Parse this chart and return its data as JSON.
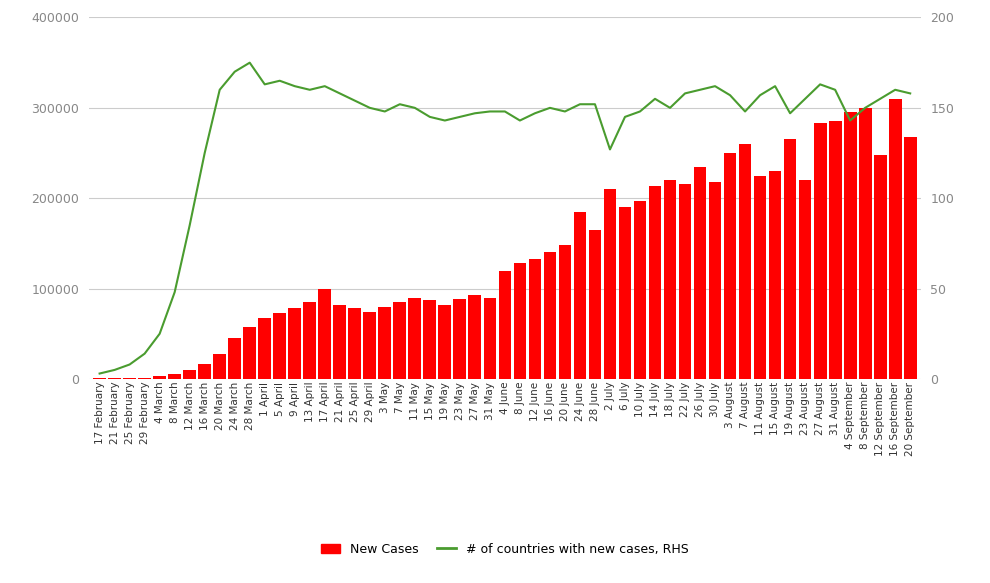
{
  "background_color": "#ffffff",
  "bar_color": "#ff0000",
  "line_color": "#4a9c2f",
  "left_ylim": [
    0,
    400000
  ],
  "right_ylim": [
    0,
    200
  ],
  "left_yticks": [
    0,
    100000,
    200000,
    300000,
    400000
  ],
  "right_yticks": [
    0,
    50,
    100,
    150,
    200
  ],
  "legend_labels": [
    "New Cases",
    "# of countries with new cases, RHS"
  ],
  "labels": [
    "17 February",
    "21 February",
    "25 February",
    "29 February",
    "4 March",
    "8 March",
    "12 March",
    "16 March",
    "20 March",
    "24 March",
    "28 March",
    "1 April",
    "5 April",
    "9 April",
    "13 April",
    "17 April",
    "21 April",
    "25 April",
    "29 April",
    "3 May",
    "7 May",
    "11 May",
    "15 May",
    "19 May",
    "23 May",
    "27 May",
    "31 May",
    "4 June",
    "8 June",
    "12 June",
    "16 June",
    "20 June",
    "24 June",
    "28 June",
    "2 July",
    "6 July",
    "10 July",
    "14 July",
    "18 July",
    "22 July",
    "26 July",
    "30 July",
    "3 August",
    "7 August",
    "11 August",
    "15 August",
    "19 August",
    "23 August",
    "27 August",
    "31 August",
    "4 September",
    "8 September",
    "12 September",
    "16 September",
    "20 September"
  ],
  "new_cases": [
    500,
    600,
    800,
    1500,
    3000,
    5000,
    10000,
    17000,
    28000,
    45000,
    58000,
    67000,
    73000,
    78000,
    85000,
    100000,
    82000,
    78000,
    74000,
    80000,
    85000,
    90000,
    87000,
    82000,
    88000,
    93000,
    90000,
    120000,
    128000,
    133000,
    140000,
    148000,
    185000,
    165000,
    210000,
    190000,
    197000,
    214000,
    220000,
    216000,
    235000,
    218000,
    250000,
    260000,
    225000,
    230000,
    265000,
    220000,
    283000,
    285000,
    295000,
    300000,
    248000,
    310000,
    268000
  ],
  "countries_line": [
    3,
    5,
    8,
    14,
    25,
    48,
    85,
    125,
    160,
    170,
    175,
    163,
    165,
    162,
    160,
    162,
    158,
    154,
    150,
    148,
    152,
    150,
    145,
    143,
    145,
    147,
    148,
    148,
    143,
    147,
    150,
    148,
    152,
    152,
    127,
    145,
    148,
    155,
    150,
    158,
    160,
    162,
    157,
    148,
    157,
    162,
    147,
    155,
    163,
    160,
    143,
    150,
    155,
    160,
    158
  ]
}
